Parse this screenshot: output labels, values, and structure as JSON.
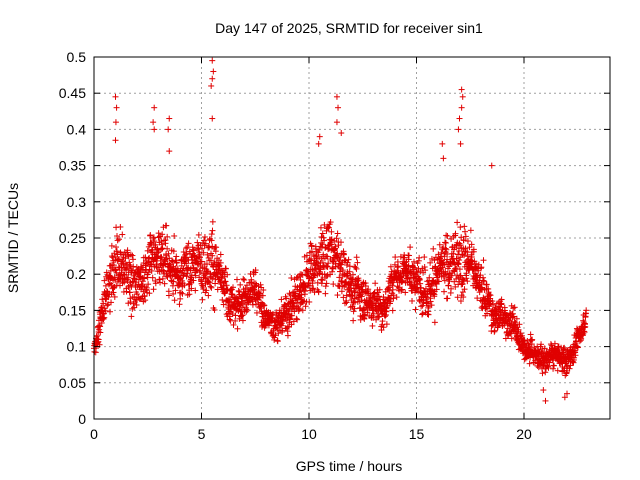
{
  "chart_data": {
    "type": "scatter",
    "title": "Day 147 of 2025, SRMTID for receiver sin1",
    "xlabel": "GPS time / hours",
    "ylabel": "SRMTID / TECUs",
    "xlim": [
      0,
      24
    ],
    "ylim": [
      0,
      0.5
    ],
    "x_ticks": [
      0,
      5,
      10,
      15,
      20
    ],
    "y_ticks": [
      0,
      0.05,
      0.1,
      0.15,
      0.2,
      0.25,
      0.3,
      0.35,
      0.4,
      0.45,
      0.5
    ],
    "x_tick_labels": [
      "0",
      "5",
      "10",
      "15",
      "20"
    ],
    "y_tick_labels": [
      "0",
      "0.05",
      "0.1",
      "0.15",
      "0.2",
      "0.25",
      "0.3",
      "0.35",
      "0.4",
      "0.45",
      "0.5"
    ],
    "grid": true,
    "marker": "+",
    "color": "#e00000",
    "series": [
      {
        "name": "SRMTID",
        "envelope_hours": [
          0,
          0.3,
          0.6,
          1.0,
          1.5,
          2.0,
          2.5,
          3.0,
          3.5,
          4.0,
          4.5,
          5.0,
          5.5,
          6.0,
          6.5,
          7.0,
          7.5,
          8.0,
          8.5,
          9.0,
          9.5,
          10.0,
          10.5,
          11.0,
          11.5,
          12.0,
          12.5,
          13.0,
          13.5,
          14.0,
          14.5,
          15.0,
          15.5,
          16.0,
          16.5,
          17.0,
          17.5,
          18.0,
          18.5,
          19.0,
          19.5,
          20.0,
          20.5,
          21.0,
          21.5,
          22.0,
          22.5,
          22.9
        ],
        "envelope_median": [
          0.1,
          0.13,
          0.18,
          0.2,
          0.21,
          0.19,
          0.2,
          0.23,
          0.21,
          0.2,
          0.21,
          0.22,
          0.22,
          0.18,
          0.15,
          0.17,
          0.18,
          0.14,
          0.13,
          0.15,
          0.17,
          0.2,
          0.22,
          0.23,
          0.21,
          0.18,
          0.17,
          0.16,
          0.15,
          0.2,
          0.21,
          0.19,
          0.18,
          0.2,
          0.21,
          0.22,
          0.22,
          0.18,
          0.15,
          0.14,
          0.13,
          0.1,
          0.09,
          0.08,
          0.09,
          0.08,
          0.11,
          0.14
        ],
        "envelope_spread": [
          0.02,
          0.05,
          0.06,
          0.07,
          0.07,
          0.06,
          0.08,
          0.08,
          0.07,
          0.06,
          0.06,
          0.07,
          0.09,
          0.06,
          0.05,
          0.05,
          0.05,
          0.04,
          0.04,
          0.05,
          0.06,
          0.07,
          0.08,
          0.08,
          0.07,
          0.06,
          0.06,
          0.05,
          0.05,
          0.06,
          0.06,
          0.06,
          0.06,
          0.07,
          0.07,
          0.09,
          0.07,
          0.06,
          0.05,
          0.04,
          0.04,
          0.03,
          0.03,
          0.03,
          0.03,
          0.03,
          0.03,
          0.02
        ],
        "peak_points": [
          [
            1.0,
            0.445
          ],
          [
            1.05,
            0.43
          ],
          [
            1.02,
            0.41
          ],
          [
            1.0,
            0.385
          ],
          [
            2.8,
            0.43
          ],
          [
            2.75,
            0.41
          ],
          [
            2.8,
            0.4
          ],
          [
            3.5,
            0.415
          ],
          [
            3.45,
            0.4
          ],
          [
            3.5,
            0.37
          ],
          [
            5.5,
            0.495
          ],
          [
            5.55,
            0.48
          ],
          [
            5.5,
            0.47
          ],
          [
            5.45,
            0.46
          ],
          [
            5.5,
            0.415
          ],
          [
            10.5,
            0.39
          ],
          [
            10.45,
            0.38
          ],
          [
            11.3,
            0.445
          ],
          [
            11.35,
            0.43
          ],
          [
            11.3,
            0.41
          ],
          [
            11.5,
            0.395
          ],
          [
            16.2,
            0.38
          ],
          [
            16.25,
            0.36
          ],
          [
            17.1,
            0.455
          ],
          [
            17.15,
            0.445
          ],
          [
            17.1,
            0.43
          ],
          [
            17.0,
            0.415
          ],
          [
            16.95,
            0.4
          ],
          [
            17.05,
            0.38
          ],
          [
            18.5,
            0.35
          ],
          [
            21.0,
            0.025
          ],
          [
            21.9,
            0.03
          ],
          [
            20.9,
            0.04
          ],
          [
            22.0,
            0.035
          ]
        ]
      }
    ]
  }
}
